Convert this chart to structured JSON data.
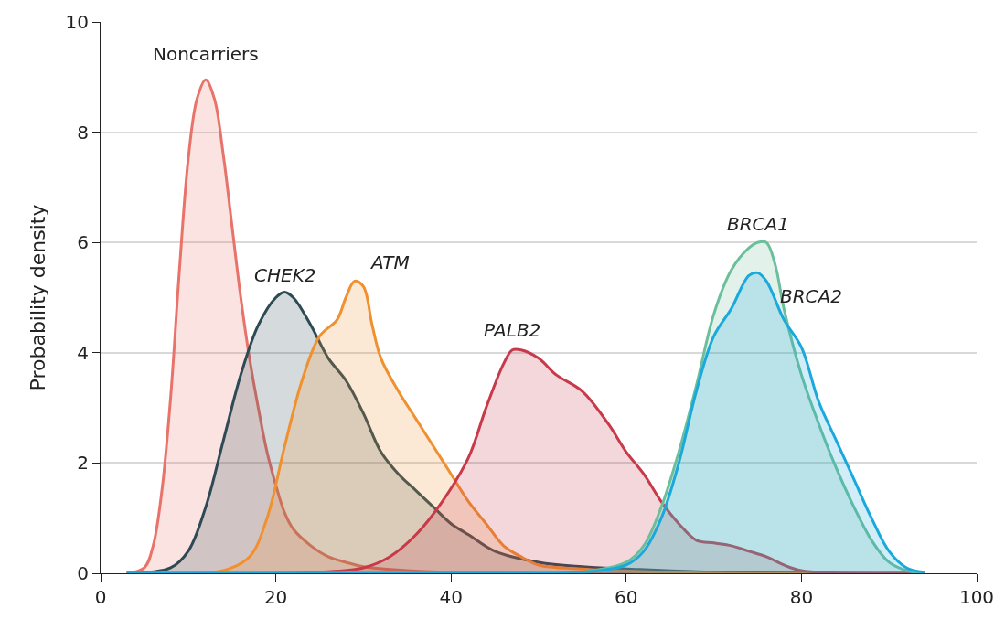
{
  "chart_data": {
    "type": "area",
    "ylabel": "Probability density",
    "xlim": [
      0,
      100
    ],
    "ylim": [
      0,
      10
    ],
    "xticks": [
      0,
      20,
      40,
      60,
      80,
      100
    ],
    "yticks": [
      0,
      2,
      4,
      6,
      8,
      10
    ],
    "grid": "y",
    "legend": false,
    "series": [
      {
        "name": "Noncarriers",
        "color": "#e8736a",
        "x": [
          3,
          5,
          6,
          7,
          8,
          9,
          10,
          11,
          12,
          13,
          14,
          15,
          16,
          17,
          18,
          19,
          20,
          21,
          22,
          24,
          26,
          28,
          30,
          35,
          40,
          50,
          94
        ],
        "values": [
          0,
          0.1,
          0.5,
          1.5,
          3.2,
          5.5,
          7.5,
          8.6,
          8.95,
          8.6,
          7.6,
          6.3,
          5.0,
          3.9,
          3.0,
          2.2,
          1.6,
          1.1,
          0.8,
          0.5,
          0.3,
          0.2,
          0.12,
          0.05,
          0.02,
          0,
          0
        ]
      },
      {
        "name": "CHEK2",
        "color": "#2e4a55",
        "x": [
          3,
          8,
          10,
          12,
          14,
          16,
          18,
          20,
          21,
          22,
          24,
          26,
          28,
          30,
          32,
          34,
          36,
          38,
          40,
          42,
          45,
          50,
          55,
          60,
          70,
          94
        ],
        "values": [
          0,
          0.1,
          0.4,
          1.2,
          2.4,
          3.6,
          4.5,
          5.0,
          5.1,
          5.0,
          4.5,
          3.9,
          3.5,
          2.9,
          2.2,
          1.8,
          1.5,
          1.2,
          0.9,
          0.7,
          0.4,
          0.2,
          0.12,
          0.08,
          0.02,
          0
        ]
      },
      {
        "name": "ATM",
        "color": "#f0902e",
        "x": [
          3,
          10,
          14,
          17,
          19,
          21,
          23,
          25,
          27,
          28,
          29,
          30,
          31,
          32,
          34,
          36,
          38,
          40,
          42,
          44,
          46,
          48,
          50,
          55,
          60,
          70,
          94
        ],
        "values": [
          0,
          0,
          0.05,
          0.3,
          1.0,
          2.3,
          3.5,
          4.3,
          4.6,
          5.0,
          5.3,
          5.2,
          4.5,
          3.9,
          3.3,
          2.8,
          2.3,
          1.8,
          1.3,
          0.9,
          0.5,
          0.3,
          0.15,
          0.08,
          0.04,
          0,
          0
        ]
      },
      {
        "name": "PALB2",
        "color": "#c8394a",
        "x": [
          3,
          20,
          25,
          30,
          33,
          36,
          39,
          42,
          44,
          46,
          47,
          48,
          50,
          52,
          55,
          58,
          60,
          62,
          64,
          66,
          68,
          70,
          72,
          74,
          76,
          78,
          80,
          85,
          94
        ],
        "values": [
          0,
          0,
          0.02,
          0.1,
          0.3,
          0.7,
          1.3,
          2.1,
          3.0,
          3.8,
          4.05,
          4.05,
          3.9,
          3.6,
          3.3,
          2.7,
          2.2,
          1.8,
          1.3,
          0.9,
          0.6,
          0.55,
          0.5,
          0.4,
          0.3,
          0.15,
          0.05,
          0,
          0
        ]
      },
      {
        "name": "BRCA1",
        "color": "#6cbf9c",
        "x": [
          3,
          50,
          55,
          60,
          62,
          64,
          66,
          68,
          70,
          72,
          74,
          75,
          76,
          77,
          78,
          80,
          82,
          84,
          86,
          88,
          90,
          92,
          94
        ],
        "values": [
          0,
          0,
          0.02,
          0.2,
          0.5,
          1.2,
          2.2,
          3.4,
          4.7,
          5.5,
          5.9,
          6.0,
          6.0,
          5.6,
          4.8,
          3.6,
          2.7,
          1.9,
          1.2,
          0.6,
          0.2,
          0.05,
          0
        ]
      },
      {
        "name": "BRCA2",
        "color": "#1aa9dc",
        "x": [
          3,
          50,
          55,
          60,
          62,
          64,
          66,
          68,
          70,
          72,
          74,
          75,
          76,
          78,
          80,
          82,
          84,
          86,
          88,
          90,
          92,
          94
        ],
        "values": [
          0,
          0,
          0.02,
          0.15,
          0.4,
          1.0,
          2.0,
          3.3,
          4.3,
          4.8,
          5.4,
          5.45,
          5.3,
          4.6,
          4.1,
          3.1,
          2.4,
          1.7,
          1.0,
          0.4,
          0.1,
          0.02
        ]
      }
    ]
  }
}
